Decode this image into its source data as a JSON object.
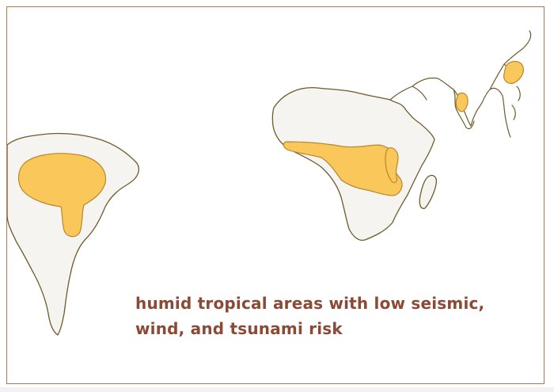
{
  "map": {
    "legend_text": "humid tropical areas with low seismic, wind, and tsunami risk",
    "zone_color": "#f9c75a",
    "land_color": "#f6f4f0",
    "outline_color": "#6e5a2a",
    "text_color": "#8a4a35",
    "regions": [
      "south-america",
      "africa",
      "madagascar",
      "asia-coast",
      "japan"
    ]
  }
}
